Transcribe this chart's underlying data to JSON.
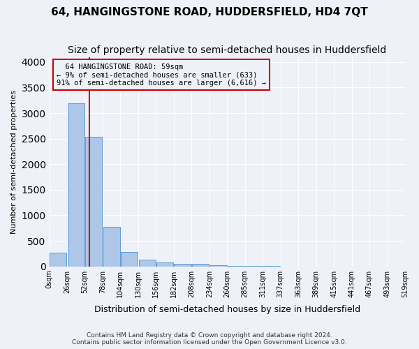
{
  "title": "64, HANGINGSTONE ROAD, HUDDERSFIELD, HD4 7QT",
  "subtitle": "Size of property relative to semi-detached houses in Huddersfield",
  "xlabel": "Distribution of semi-detached houses by size in Huddersfield",
  "ylabel": "Number of semi-detached properties",
  "footer1": "Contains HM Land Registry data © Crown copyright and database right 2024.",
  "footer2": "Contains public sector information licensed under the Open Government Licence v3.0.",
  "bin_labels": [
    "0sqm",
    "26sqm",
    "52sqm",
    "78sqm",
    "104sqm",
    "130sqm",
    "156sqm",
    "182sqm",
    "208sqm",
    "234sqm",
    "260sqm",
    "285sqm",
    "311sqm",
    "337sqm",
    "363sqm",
    "389sqm",
    "415sqm",
    "441sqm",
    "467sqm",
    "493sqm",
    "519sqm"
  ],
  "bar_values": [
    270,
    3190,
    2530,
    775,
    285,
    130,
    75,
    50,
    45,
    25,
    15,
    5,
    3,
    2,
    1,
    1,
    0,
    0,
    0,
    0
  ],
  "bar_color": "#aec6e8",
  "bar_edgecolor": "#5a9fd4",
  "property_size": 59,
  "property_label": "64 HANGINGSTONE ROAD: 59sqm",
  "pct_smaller": 9,
  "count_smaller": 633,
  "pct_larger": 91,
  "count_larger": "6,616",
  "vline_color": "#cc0000",
  "annotation_box_color": "#cc0000",
  "ylim": [
    0,
    4100
  ],
  "bg_color": "#eef2f8",
  "grid_color": "#ffffff",
  "title_fontsize": 11,
  "subtitle_fontsize": 10
}
